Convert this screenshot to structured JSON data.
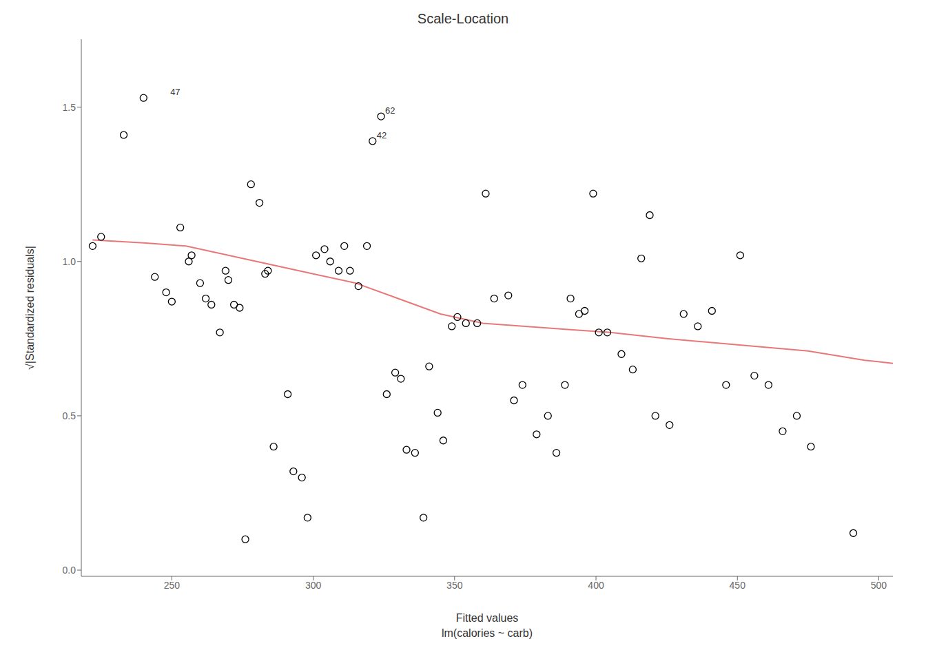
{
  "chart_data": {
    "type": "scatter",
    "title": "Scale-Location",
    "x_label": "Fitted values\nlm(calories ~ carb)",
    "y_label": "√|Standardized residuals|",
    "xlim": [
      218,
      505
    ],
    "ylim": [
      -0.02,
      1.72
    ],
    "xticks": [
      250,
      300,
      350,
      400,
      450,
      500
    ],
    "yticks": [
      {
        "value": 0.0,
        "label": "0.0"
      },
      0.5,
      {
        "value": 1.0,
        "label": "1.0"
      },
      1.5
    ],
    "grid": false,
    "series": [
      {
        "type": "scatter",
        "color": "#000000",
        "marker": "circle",
        "x": [
          222,
          225,
          233,
          240,
          244,
          248,
          250,
          253,
          256,
          257,
          260,
          262,
          264,
          267,
          269,
          270,
          272,
          274,
          276,
          278,
          281,
          283,
          284,
          286,
          291,
          293,
          296,
          298,
          301,
          304,
          306,
          309,
          311,
          313,
          316,
          319,
          321,
          324,
          326,
          329,
          331,
          333,
          336,
          339,
          341,
          344,
          346,
          349,
          351,
          354,
          358,
          361,
          364,
          369,
          371,
          374,
          379,
          383,
          386,
          389,
          391,
          394,
          396,
          399,
          401,
          404,
          409,
          413,
          416,
          419,
          421,
          426,
          431,
          436,
          441,
          446,
          451,
          456,
          461,
          466,
          471,
          476,
          491
        ],
        "values": [
          1.05,
          1.08,
          1.41,
          1.53,
          0.95,
          0.9,
          0.87,
          1.11,
          1.0,
          1.02,
          0.93,
          0.88,
          0.86,
          0.77,
          0.97,
          0.94,
          0.86,
          0.85,
          0.1,
          1.25,
          1.19,
          0.96,
          0.97,
          0.4,
          0.57,
          0.32,
          0.3,
          0.17,
          1.02,
          1.04,
          1.0,
          0.97,
          1.05,
          0.97,
          0.92,
          1.05,
          1.39,
          1.47,
          0.57,
          0.64,
          0.62,
          0.39,
          0.38,
          0.17,
          0.66,
          0.51,
          0.42,
          0.79,
          0.82,
          0.8,
          0.8,
          1.22,
          0.88,
          0.89,
          0.55,
          0.6,
          0.44,
          0.5,
          0.38,
          0.6,
          0.88,
          0.83,
          0.84,
          1.22,
          0.77,
          0.77,
          0.7,
          0.65,
          1.01,
          1.15,
          0.5,
          0.47,
          0.83,
          0.79,
          0.84,
          0.6,
          1.02,
          0.63,
          0.6,
          0.45,
          0.5,
          0.4,
          0.12
        ]
      },
      {
        "type": "line",
        "color": "#e87878",
        "x": [
          222,
          240,
          255,
          270,
          285,
          300,
          315,
          330,
          345,
          360,
          375,
          390,
          405,
          425,
          450,
          475,
          495,
          505
        ],
        "values": [
          1.07,
          1.06,
          1.05,
          1.02,
          0.99,
          0.96,
          0.93,
          0.88,
          0.83,
          0.8,
          0.79,
          0.78,
          0.77,
          0.75,
          0.73,
          0.71,
          0.68,
          0.67
        ]
      }
    ],
    "annotations": [
      {
        "text": "47",
        "x": 248,
        "y": 1.53
      },
      {
        "text": "42",
        "x": 321,
        "y": 1.39
      },
      {
        "text": "62",
        "x": 324,
        "y": 1.47
      }
    ]
  }
}
